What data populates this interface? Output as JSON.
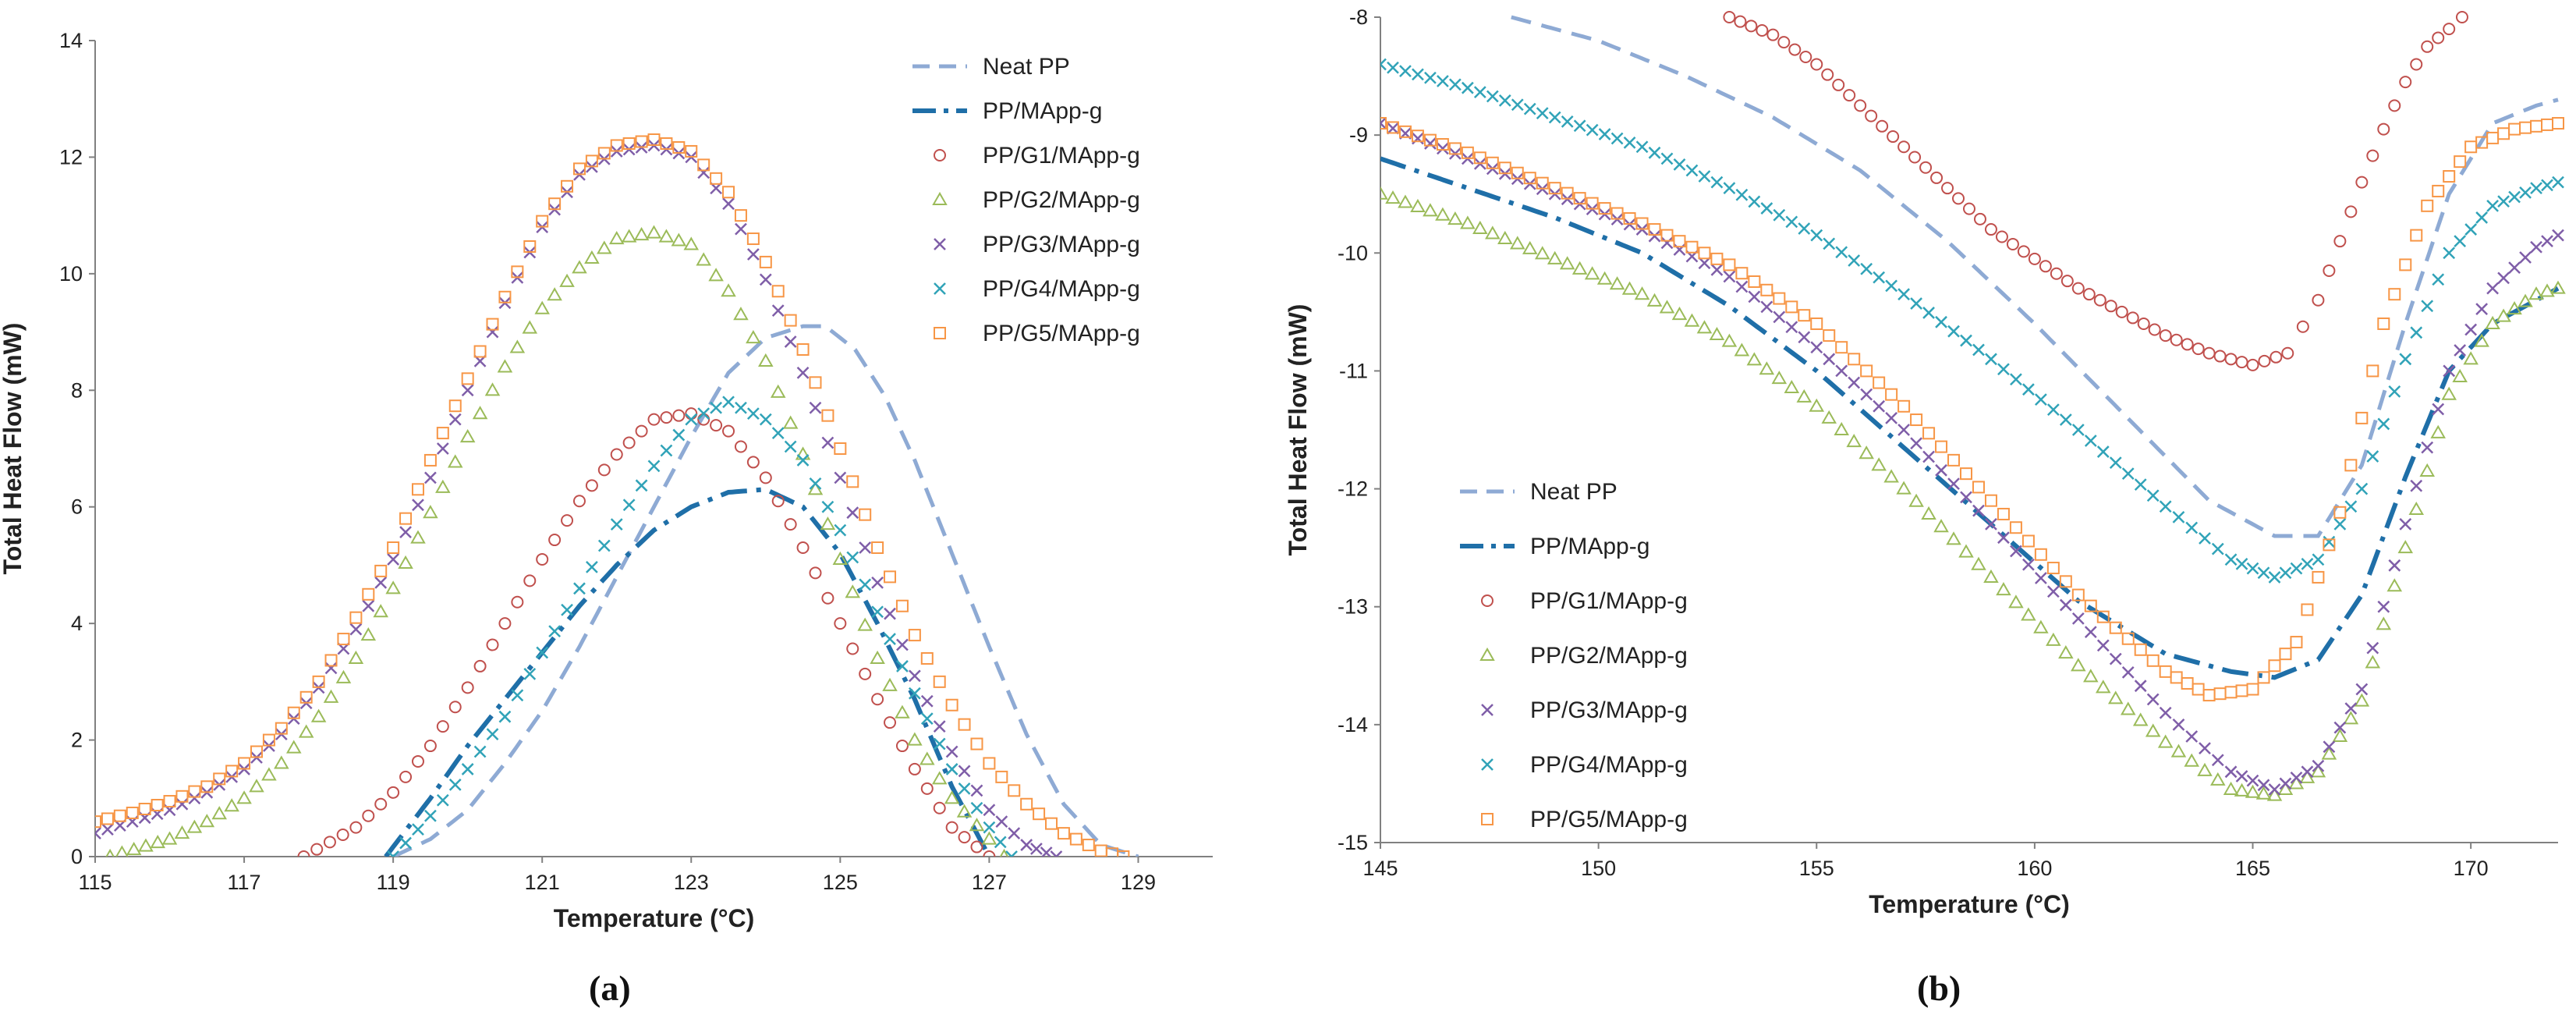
{
  "chart_data": [
    {
      "panel_label": "(a)",
      "type": "line",
      "xlabel": "Temperature (°C)",
      "ylabel": "Total Heat Flow (mW)",
      "xlim": [
        115,
        130
      ],
      "ylim": [
        0,
        14
      ],
      "xticks": [
        115,
        117,
        119,
        121,
        123,
        125,
        127,
        129
      ],
      "yticks": [
        0,
        2,
        4,
        6,
        8,
        10,
        12,
        14
      ],
      "grid": false,
      "legend_position": "top-right",
      "series": [
        {
          "name": "Neat PP",
          "style": "dash",
          "color": "#8eaad4",
          "x": [
            119.0,
            119.5,
            120.0,
            120.5,
            121.0,
            121.5,
            122.0,
            122.5,
            123.0,
            123.5,
            124.0,
            124.5,
            124.8,
            125.2,
            125.6,
            126.0,
            126.5,
            127.0,
            127.5,
            128.0,
            128.5,
            129.0
          ],
          "y": [
            0.0,
            0.3,
            0.8,
            1.6,
            2.5,
            3.6,
            4.8,
            6.0,
            7.2,
            8.3,
            8.9,
            9.1,
            9.1,
            8.7,
            7.9,
            6.8,
            5.2,
            3.6,
            2.1,
            0.9,
            0.2,
            0.0
          ]
        },
        {
          "name": "PP/MApp-g",
          "style": "dashdot",
          "color": "#1f6fa8",
          "x": [
            118.9,
            119.5,
            120.0,
            120.5,
            121.0,
            121.5,
            122.0,
            122.5,
            123.0,
            123.5,
            124.0,
            124.5,
            125.0,
            125.5,
            126.0,
            126.5,
            127.0
          ],
          "y": [
            0.0,
            1.0,
            1.9,
            2.7,
            3.5,
            4.3,
            5.0,
            5.6,
            6.0,
            6.25,
            6.3,
            6.0,
            5.2,
            4.0,
            2.7,
            1.2,
            0.0
          ]
        },
        {
          "name": "PP/G1/MApp-g",
          "style": "marker-circle",
          "color": "#c0504d",
          "x": [
            117.8,
            118.5,
            119.0,
            119.5,
            120.0,
            120.5,
            121.0,
            121.5,
            122.0,
            122.5,
            123.0,
            123.5,
            124.0,
            124.5,
            125.0,
            125.5,
            126.0,
            126.5,
            127.0
          ],
          "y": [
            0.0,
            0.5,
            1.1,
            1.9,
            2.9,
            4.0,
            5.1,
            6.1,
            6.9,
            7.5,
            7.6,
            7.3,
            6.5,
            5.3,
            4.0,
            2.7,
            1.5,
            0.5,
            0.0
          ]
        },
        {
          "name": "PP/G2/MApp-g",
          "style": "marker-triangle",
          "color": "#9bbb59",
          "x": [
            115.2,
            116.0,
            116.5,
            117.0,
            117.5,
            118.0,
            118.5,
            119.0,
            119.5,
            120.0,
            120.5,
            121.0,
            121.5,
            122.0,
            122.5,
            123.0,
            123.5,
            124.0,
            124.5,
            125.0,
            125.5,
            126.0,
            126.5,
            127.0,
            127.2
          ],
          "y": [
            0.0,
            0.3,
            0.6,
            1.0,
            1.6,
            2.4,
            3.4,
            4.6,
            5.9,
            7.2,
            8.4,
            9.4,
            10.1,
            10.6,
            10.7,
            10.5,
            9.7,
            8.5,
            6.9,
            5.1,
            3.4,
            2.0,
            1.0,
            0.3,
            0.0
          ]
        },
        {
          "name": "PP/G3/MApp-g",
          "style": "marker-x",
          "color": "#7f5ea8",
          "x": [
            115.0,
            115.5,
            116.0,
            116.5,
            117.0,
            117.5,
            118.0,
            118.5,
            119.0,
            119.5,
            120.0,
            120.5,
            121.0,
            121.5,
            122.0,
            122.5,
            123.0,
            123.5,
            124.0,
            124.5,
            125.0,
            125.5,
            126.0,
            126.5,
            127.0,
            127.5,
            127.9
          ],
          "y": [
            0.4,
            0.6,
            0.8,
            1.1,
            1.5,
            2.1,
            2.9,
            3.9,
            5.1,
            6.5,
            8.0,
            9.5,
            10.8,
            11.7,
            12.1,
            12.2,
            12.0,
            11.2,
            9.9,
            8.3,
            6.5,
            4.7,
            3.1,
            1.8,
            0.8,
            0.2,
            0.0
          ]
        },
        {
          "name": "PP/G4/MApp-g",
          "style": "marker-x",
          "color": "#31a3b8",
          "x": [
            119.0,
            119.5,
            120.0,
            120.5,
            121.0,
            121.5,
            122.0,
            122.5,
            123.0,
            123.5,
            124.0,
            124.5,
            125.0,
            125.5,
            126.0,
            126.5,
            127.0,
            127.3
          ],
          "y": [
            0.0,
            0.7,
            1.5,
            2.4,
            3.5,
            4.6,
            5.7,
            6.7,
            7.5,
            7.8,
            7.5,
            6.8,
            5.6,
            4.2,
            2.8,
            1.5,
            0.5,
            0.0
          ]
        },
        {
          "name": "PP/G5/MApp-g",
          "style": "marker-square",
          "color": "#f79646",
          "x": [
            115.0,
            115.5,
            116.0,
            116.5,
            117.0,
            117.5,
            118.0,
            118.5,
            119.0,
            119.5,
            120.0,
            120.5,
            121.0,
            121.5,
            122.0,
            122.5,
            123.0,
            123.5,
            124.0,
            124.5,
            125.0,
            125.5,
            126.0,
            126.5,
            127.0,
            127.5,
            128.0,
            128.5,
            128.8
          ],
          "y": [
            0.6,
            0.75,
            0.95,
            1.2,
            1.6,
            2.2,
            3.0,
            4.1,
            5.3,
            6.8,
            8.2,
            9.6,
            10.9,
            11.8,
            12.2,
            12.3,
            12.1,
            11.4,
            10.2,
            8.7,
            7.0,
            5.3,
            3.8,
            2.6,
            1.6,
            0.9,
            0.4,
            0.1,
            0.0
          ]
        }
      ]
    },
    {
      "panel_label": "(b)",
      "type": "line",
      "xlabel": "Temperature (°C)",
      "ylabel": "Total Heat Flow (mW)",
      "xlim": [
        145,
        172
      ],
      "ylim": [
        -15,
        -8
      ],
      "xticks": [
        145,
        150,
        155,
        160,
        165,
        170
      ],
      "yticks": [
        -8,
        -9,
        -10,
        -11,
        -12,
        -13,
        -14,
        -15
      ],
      "grid": false,
      "legend_position": "bottom-left",
      "series": [
        {
          "name": "Neat PP",
          "style": "dash",
          "color": "#8eaad4",
          "x": [
            148.0,
            150.0,
            152.0,
            154.0,
            156.0,
            158.0,
            160.0,
            162.0,
            164.0,
            165.5,
            166.5,
            167.5,
            168.5,
            169.5,
            170.5,
            171.5,
            172.0
          ],
          "y": [
            -8.0,
            -8.2,
            -8.5,
            -8.85,
            -9.3,
            -9.9,
            -10.6,
            -11.35,
            -12.1,
            -12.4,
            -12.4,
            -11.8,
            -10.6,
            -9.5,
            -8.9,
            -8.75,
            -8.7
          ]
        },
        {
          "name": "PP/MApp-g",
          "style": "dashdot",
          "color": "#1f6fa8",
          "x": [
            145,
            147,
            149,
            151,
            153,
            155,
            157,
            159,
            161,
            163,
            164.5,
            165.5,
            166.5,
            167.5,
            168.5,
            169.5,
            170.5,
            171.5,
            172.0
          ],
          "y": [
            -9.2,
            -9.45,
            -9.7,
            -10.0,
            -10.45,
            -11.0,
            -11.65,
            -12.3,
            -12.95,
            -13.4,
            -13.55,
            -13.6,
            -13.45,
            -12.9,
            -11.9,
            -11.0,
            -10.6,
            -10.4,
            -10.3
          ]
        },
        {
          "name": "PP/G1/MApp-g",
          "style": "marker-circle",
          "color": "#c0504d",
          "x": [
            153.0,
            154.0,
            155.0,
            156.0,
            157.0,
            158.0,
            159.0,
            160.0,
            161.0,
            162.0,
            163.0,
            164.0,
            165.0,
            165.8,
            166.5,
            167.0,
            167.5,
            168.0,
            168.5,
            169.0,
            169.5,
            169.8
          ],
          "y": [
            -8.0,
            -8.15,
            -8.4,
            -8.75,
            -9.1,
            -9.45,
            -9.8,
            -10.05,
            -10.3,
            -10.5,
            -10.7,
            -10.85,
            -10.95,
            -10.85,
            -10.4,
            -9.9,
            -9.4,
            -8.95,
            -8.55,
            -8.25,
            -8.1,
            -8.0
          ]
        },
        {
          "name": "PP/G2/MApp-g",
          "style": "marker-triangle",
          "color": "#9bbb59",
          "x": [
            145,
            147,
            149,
            151,
            153,
            155,
            157,
            159,
            161,
            163,
            164.5,
            165.5,
            166.5,
            167.5,
            168.5,
            169.5,
            170.5,
            171.5,
            172.0
          ],
          "y": [
            -9.5,
            -9.75,
            -10.05,
            -10.35,
            -10.75,
            -11.3,
            -12.0,
            -12.75,
            -13.5,
            -14.15,
            -14.55,
            -14.6,
            -14.4,
            -13.8,
            -12.5,
            -11.2,
            -10.6,
            -10.35,
            -10.3
          ]
        },
        {
          "name": "PP/G3/MApp-g",
          "style": "marker-x",
          "color": "#7f5ea8",
          "x": [
            145,
            147,
            149,
            151,
            153,
            155,
            157,
            159,
            161,
            163,
            164.5,
            165.5,
            166.5,
            167.5,
            168.5,
            169.5,
            170.5,
            171.5,
            172.0
          ],
          "y": [
            -8.9,
            -9.2,
            -9.5,
            -9.8,
            -10.2,
            -10.8,
            -11.5,
            -12.3,
            -13.1,
            -13.9,
            -14.4,
            -14.55,
            -14.35,
            -13.7,
            -12.3,
            -11.0,
            -10.3,
            -9.95,
            -9.85
          ]
        },
        {
          "name": "PP/G4/MApp-g",
          "style": "marker-x",
          "color": "#31a3b8",
          "x": [
            145,
            147,
            149,
            151,
            153,
            155,
            157,
            159,
            161,
            163,
            164.5,
            165.5,
            166.5,
            167.5,
            168.5,
            169.5,
            170.5,
            171.5,
            172.0
          ],
          "y": [
            -8.4,
            -8.6,
            -8.85,
            -9.1,
            -9.45,
            -9.85,
            -10.35,
            -10.9,
            -11.5,
            -12.15,
            -12.6,
            -12.75,
            -12.6,
            -12.0,
            -10.9,
            -10.0,
            -9.6,
            -9.45,
            -9.4
          ]
        },
        {
          "name": "PP/G5/MApp-g",
          "style": "marker-square",
          "color": "#f79646",
          "x": [
            145,
            147,
            149,
            151,
            153,
            155,
            157,
            159,
            161,
            163,
            164,
            165,
            166,
            167,
            168,
            169,
            170,
            171,
            172.0
          ],
          "y": [
            -8.9,
            -9.15,
            -9.45,
            -9.75,
            -10.1,
            -10.6,
            -11.3,
            -12.1,
            -12.9,
            -13.55,
            -13.75,
            -13.7,
            -13.3,
            -12.2,
            -10.6,
            -9.6,
            -9.1,
            -8.95,
            -8.9
          ]
        }
      ]
    }
  ]
}
